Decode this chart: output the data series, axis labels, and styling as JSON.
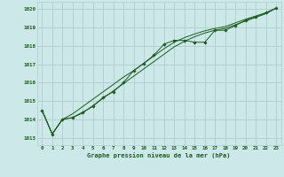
{
  "title": "Graphe pression niveau de la mer (hPa)",
  "background_color": "#cce8e8",
  "grid_color": "#b0cccc",
  "line_color": "#1a5c1a",
  "marker_color": "#1a5c1a",
  "xlim": [
    -0.5,
    23.5
  ],
  "ylim": [
    1012.6,
    1020.4
  ],
  "yticks": [
    1013,
    1014,
    1015,
    1016,
    1017,
    1018,
    1019,
    1020
  ],
  "xticks": [
    0,
    1,
    2,
    3,
    4,
    5,
    6,
    7,
    8,
    9,
    10,
    11,
    12,
    13,
    14,
    15,
    16,
    17,
    18,
    19,
    20,
    21,
    22,
    23
  ],
  "series_markers": {
    "x": [
      0,
      1,
      2,
      3,
      4,
      5,
      6,
      7,
      8,
      9,
      10,
      11,
      12,
      13,
      14,
      15,
      16,
      17,
      18,
      19,
      20,
      21,
      22,
      23
    ],
    "y": [
      1014.5,
      1013.2,
      1014.0,
      1014.1,
      1014.4,
      1014.7,
      1015.2,
      1015.5,
      1016.0,
      1016.65,
      1017.05,
      1017.5,
      1018.1,
      1018.3,
      1018.3,
      1018.2,
      1018.2,
      1018.85,
      1018.85,
      1019.1,
      1019.4,
      1019.6,
      1019.8,
      1020.05
    ]
  },
  "series_upper": {
    "x": [
      0,
      1,
      2,
      3,
      4,
      5,
      6,
      7,
      8,
      9,
      10,
      11,
      12,
      13,
      14,
      15,
      16,
      17,
      18,
      19,
      20,
      21,
      22,
      23
    ],
    "y": [
      1014.5,
      1013.2,
      1014.0,
      1014.3,
      1014.7,
      1015.1,
      1015.5,
      1015.9,
      1016.3,
      1016.65,
      1017.05,
      1017.45,
      1017.85,
      1018.2,
      1018.45,
      1018.65,
      1018.82,
      1018.95,
      1019.05,
      1019.25,
      1019.45,
      1019.62,
      1019.8,
      1020.05
    ]
  },
  "series_lower": {
    "x": [
      0,
      1,
      2,
      3,
      4,
      5,
      6,
      7,
      8,
      9,
      10,
      11,
      12,
      13,
      14,
      15,
      16,
      17,
      18,
      19,
      20,
      21,
      22,
      23
    ],
    "y": [
      1014.5,
      1013.2,
      1014.0,
      1014.1,
      1014.35,
      1014.75,
      1015.15,
      1015.55,
      1015.95,
      1016.35,
      1016.75,
      1017.15,
      1017.55,
      1017.95,
      1018.25,
      1018.5,
      1018.7,
      1018.85,
      1018.95,
      1019.15,
      1019.35,
      1019.55,
      1019.75,
      1020.05
    ]
  }
}
